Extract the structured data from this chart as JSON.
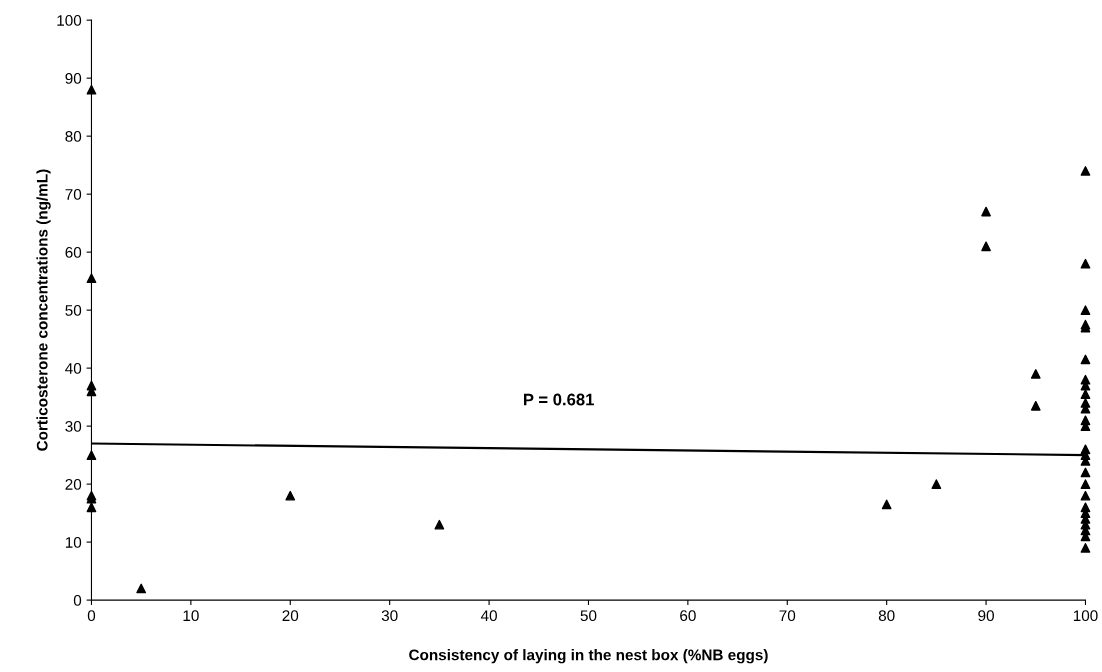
{
  "chart_data": {
    "type": "scatter",
    "xlabel": "Consistency of laying in the nest box (%NB eggs)",
    "ylabel": "Corticosterone concentrations (ng/mL)",
    "xlim": [
      0,
      100
    ],
    "ylim": [
      0,
      100
    ],
    "xticks": [
      0,
      10,
      20,
      30,
      40,
      50,
      60,
      70,
      80,
      90,
      100
    ],
    "yticks": [
      0,
      10,
      20,
      30,
      40,
      50,
      60,
      70,
      80,
      90,
      100
    ],
    "grid": false,
    "legend": false,
    "annotations": [
      "P = 0.681"
    ],
    "series": [
      {
        "marker": "triangle",
        "color": "#000000",
        "x": [
          0,
          0,
          0,
          0,
          0,
          0,
          0,
          0,
          5,
          20,
          35,
          80,
          85,
          90,
          90,
          95,
          95,
          100,
          100,
          100,
          100,
          100,
          100,
          100,
          100,
          100,
          100,
          100,
          100,
          100,
          100,
          100,
          100,
          100,
          100,
          100,
          100,
          100,
          100,
          100,
          100,
          100,
          100
        ],
        "values": [
          88,
          55.5,
          37,
          36,
          25,
          18,
          17.5,
          16,
          2,
          18,
          13,
          16.5,
          20,
          67,
          61,
          39,
          33.5,
          74,
          58,
          50,
          47.5,
          47,
          41.5,
          38,
          37,
          35.5,
          34,
          33,
          31,
          30,
          26,
          25,
          24,
          22,
          20,
          18,
          16,
          15,
          14,
          13,
          12,
          11,
          9
        ]
      },
      {
        "type": "line",
        "color": "#000000",
        "x": [
          0,
          100
        ],
        "values": [
          27,
          25
        ]
      }
    ]
  }
}
